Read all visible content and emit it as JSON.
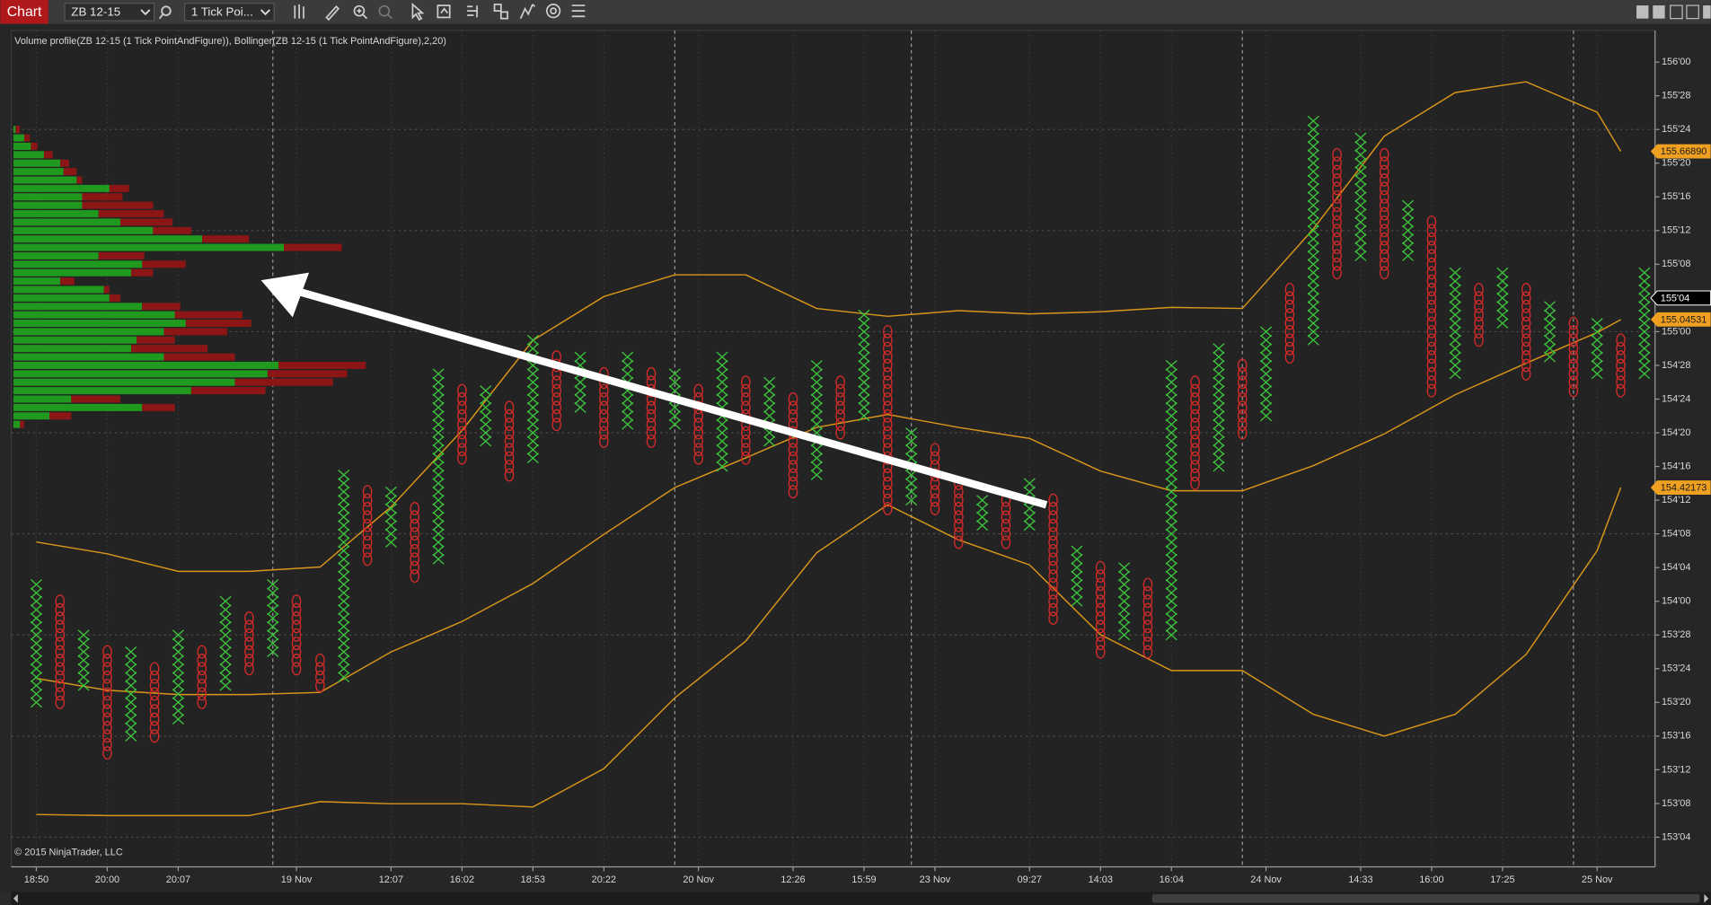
{
  "toolbar": {
    "tab": "Chart",
    "instrument": "ZB 12-15",
    "period": "1 Tick Poi..."
  },
  "chart_data": {
    "type": "point_and_figure",
    "indicator_label": "Volume profile(ZB 12-15 (1 Tick PointAndFigure)), Bollinger(ZB 12-15 (1 Tick PointAndFigure),2,20)",
    "copyright": "© 2015 NinjaTrader, LLC",
    "ylim": [
      153.015,
      156.117
    ],
    "yticks": [
      {
        "value": 156,
        "label": "156'00"
      },
      {
        "value": 155.875,
        "label": "155'28"
      },
      {
        "value": 155.75,
        "label": "155'24"
      },
      {
        "value": 155.625,
        "label": "155'20"
      },
      {
        "value": 155.5,
        "label": "155'16"
      },
      {
        "value": 155.375,
        "label": "155'12"
      },
      {
        "value": 155.25,
        "label": "155'08"
      },
      {
        "value": 155.125,
        "label": "155'04"
      },
      {
        "value": 155,
        "label": "155'00"
      },
      {
        "value": 154.875,
        "label": "154'28"
      },
      {
        "value": 154.75,
        "label": "154'24"
      },
      {
        "value": 154.625,
        "label": "154'20"
      },
      {
        "value": 154.5,
        "label": "154'16"
      },
      {
        "value": 154.375,
        "label": "154'12"
      },
      {
        "value": 154.25,
        "label": "154'08"
      },
      {
        "value": 154.125,
        "label": "154'04"
      },
      {
        "value": 154,
        "label": "154'00"
      },
      {
        "value": 153.875,
        "label": "153'28"
      },
      {
        "value": 153.75,
        "label": "153'24"
      },
      {
        "value": 153.625,
        "label": "153'20"
      },
      {
        "value": 153.5,
        "label": "153'16"
      },
      {
        "value": 153.375,
        "label": "153'12"
      },
      {
        "value": 153.25,
        "label": "153'08"
      },
      {
        "value": 153.125,
        "label": "153'04"
      }
    ],
    "categories": [
      "18:50",
      null,
      null,
      "20:00",
      null,
      null,
      "20:07",
      null,
      null,
      null,
      null,
      "19 Nov",
      null,
      null,
      null,
      "12:07",
      null,
      null,
      "16:02",
      null,
      null,
      "18:53",
      null,
      null,
      "20:22",
      null,
      null,
      null,
      "20 Nov",
      null,
      null,
      null,
      "12:26",
      null,
      null,
      "15:59",
      null,
      null,
      "23 Nov",
      null,
      null,
      null,
      "09:27",
      null,
      null,
      "14:03",
      null,
      null,
      "16:04",
      null,
      null,
      null,
      "24 Nov",
      null,
      null,
      null,
      "14:33",
      null,
      null,
      "16:00",
      null,
      null,
      "17:25",
      null,
      null,
      null,
      "25 Nov",
      null,
      null
    ],
    "columns": {
      "x_color": "#3cc43c",
      "o_color": "#d42a2a",
      "types": [
        "X",
        "O",
        "X",
        "O",
        "X",
        "O",
        "X",
        "O",
        "X",
        "O",
        "X",
        "O",
        "O",
        "X",
        "O",
        "X",
        "O",
        "X",
        "O",
        "X",
        "O",
        "X",
        "O",
        "X",
        "O",
        "X",
        "O",
        "X",
        "O",
        "X",
        "O",
        "X",
        "O",
        "X",
        "O",
        "X",
        "O",
        "X",
        "O",
        "O",
        "X",
        "O",
        "X",
        "O",
        "X",
        "O",
        "X",
        "O",
        "X",
        "O",
        "X",
        "O",
        "X",
        "O",
        "X",
        "O",
        "X",
        "O",
        "X",
        "O",
        "X",
        "O",
        "X",
        "O",
        "X",
        "O",
        "X",
        "O",
        "X"
      ],
      "high": [
        154.0625,
        154,
        153.875,
        153.8125,
        153.8125,
        153.75,
        153.875,
        153.8125,
        154,
        153.9375,
        154.0625,
        154,
        153.78125,
        154.46875,
        154.40625,
        154.40625,
        154.34375,
        154.84375,
        154.78125,
        154.78125,
        154.71875,
        154.96875,
        154.90625,
        154.90625,
        154.84375,
        154.90625,
        154.84375,
        154.84375,
        154.78125,
        154.90625,
        154.8125,
        154.8125,
        154.75,
        154.875,
        154.8125,
        155.0625,
        155,
        154.625,
        154.5625,
        154.4375,
        154.375,
        154.375,
        154.4375,
        154.375,
        154.1875,
        154.125,
        154.125,
        154.0625,
        154.875,
        154.8125,
        154.9375,
        154.875,
        155,
        155.15625,
        155.78125,
        155.65625,
        155.71875,
        155.65625,
        155.46875,
        155.40625,
        155.21875,
        155.15625,
        155.21875,
        155.15625,
        155.09375,
        155.03125,
        155.03125,
        154.96875,
        155.21875
      ],
      "low": [
        153.625,
        153.625,
        153.6875,
        153.4375,
        153.5,
        153.5,
        153.5625,
        153.625,
        153.6875,
        153.75,
        153.8125,
        153.75,
        153.6875,
        153.71875,
        154.15625,
        154.21875,
        154.09375,
        154.15625,
        154.53125,
        154.59375,
        154.46875,
        154.53125,
        154.65625,
        154.71875,
        154.59375,
        154.65625,
        154.59375,
        154.65625,
        154.53125,
        154.5,
        154.53125,
        154.59375,
        154.40625,
        154.46875,
        154.625,
        154.6875,
        154.34375,
        154.375,
        154.34375,
        154.21875,
        154.28125,
        154.21875,
        154.28125,
        153.9375,
        154,
        153.8125,
        153.875,
        153.8125,
        153.875,
        154.4375,
        154.5,
        154.625,
        154.6875,
        154.90625,
        154.96875,
        155.21875,
        155.28125,
        155.21875,
        155.28125,
        154.78125,
        154.84375,
        154.96875,
        155.03125,
        154.84375,
        154.90625,
        154.78125,
        154.84375,
        154.78125,
        154.84375
      ]
    },
    "bands": {
      "color": "#d9961a",
      "x": [
        0,
        3,
        6,
        9,
        12,
        15,
        18,
        21,
        24,
        27,
        30,
        33,
        36,
        39,
        42,
        45,
        48,
        51,
        54,
        57,
        60,
        63,
        66,
        67
      ],
      "upper": [
        154.22,
        154.176,
        154.111,
        154.111,
        154.127,
        154.35,
        154.633,
        154.968,
        155.13,
        155.211,
        155.211,
        155.086,
        155.057,
        155.078,
        155.066,
        155.074,
        155.09,
        155.086,
        155.381,
        155.725,
        155.887,
        155.927,
        155.814,
        155.669
      ],
      "middle": [
        153.714,
        153.67,
        153.654,
        153.654,
        153.662,
        153.812,
        153.925,
        154.066,
        154.248,
        154.422,
        154.532,
        154.645,
        154.693,
        154.645,
        154.604,
        154.483,
        154.41,
        154.41,
        154.503,
        154.621,
        154.766,
        154.883,
        154.997,
        155.045
      ],
      "lower": [
        153.209,
        153.205,
        153.205,
        153.205,
        153.257,
        153.249,
        153.249,
        153.237,
        153.379,
        153.642,
        153.852,
        154.18,
        154.358,
        154.228,
        154.135,
        153.876,
        153.743,
        153.743,
        153.581,
        153.5,
        153.581,
        153.803,
        154.188,
        154.422
      ]
    },
    "volume_profile": {
      "buy_color": "#1f9a1f",
      "sell_color": "#8c1616",
      "prices": [
        155.75,
        155.71875,
        155.6875,
        155.65625,
        155.625,
        155.59375,
        155.5625,
        155.53125,
        155.5,
        155.46875,
        155.4375,
        155.40625,
        155.375,
        155.34375,
        155.3125,
        155.28125,
        155.25,
        155.21875,
        155.1875,
        155.15625,
        155.125,
        155.09375,
        155.0625,
        155.03125,
        155,
        154.96875,
        154.9375,
        154.90625,
        154.875,
        154.84375,
        154.8125,
        154.78125,
        154.75,
        154.71875,
        154.6875,
        154.65625
      ],
      "buy": [
        2,
        10,
        16,
        28,
        43,
        46,
        58,
        88,
        63,
        63,
        78,
        98,
        128,
        173,
        248,
        78,
        118,
        108,
        43,
        83,
        88,
        118,
        148,
        158,
        138,
        113,
        108,
        138,
        243,
        233,
        203,
        163,
        53,
        118,
        33,
        6
      ],
      "sell": [
        4,
        5,
        6,
        8,
        8,
        12,
        5,
        18,
        37,
        65,
        60,
        48,
        35,
        43,
        53,
        42,
        40,
        20,
        13,
        5,
        10,
        35,
        62,
        60,
        58,
        35,
        70,
        65,
        80,
        73,
        90,
        68,
        45,
        30,
        20,
        4
      ]
    },
    "badges": [
      {
        "value": 155.6689,
        "label": "155.66890",
        "color": "#f0a020"
      },
      {
        "value": 155.125,
        "label": "155'04",
        "color": "#000000"
      },
      {
        "value": 155.04531,
        "color": "#f0a020"
      },
      {
        "value": 154.42173,
        "color": "#f0a020"
      }
    ]
  }
}
